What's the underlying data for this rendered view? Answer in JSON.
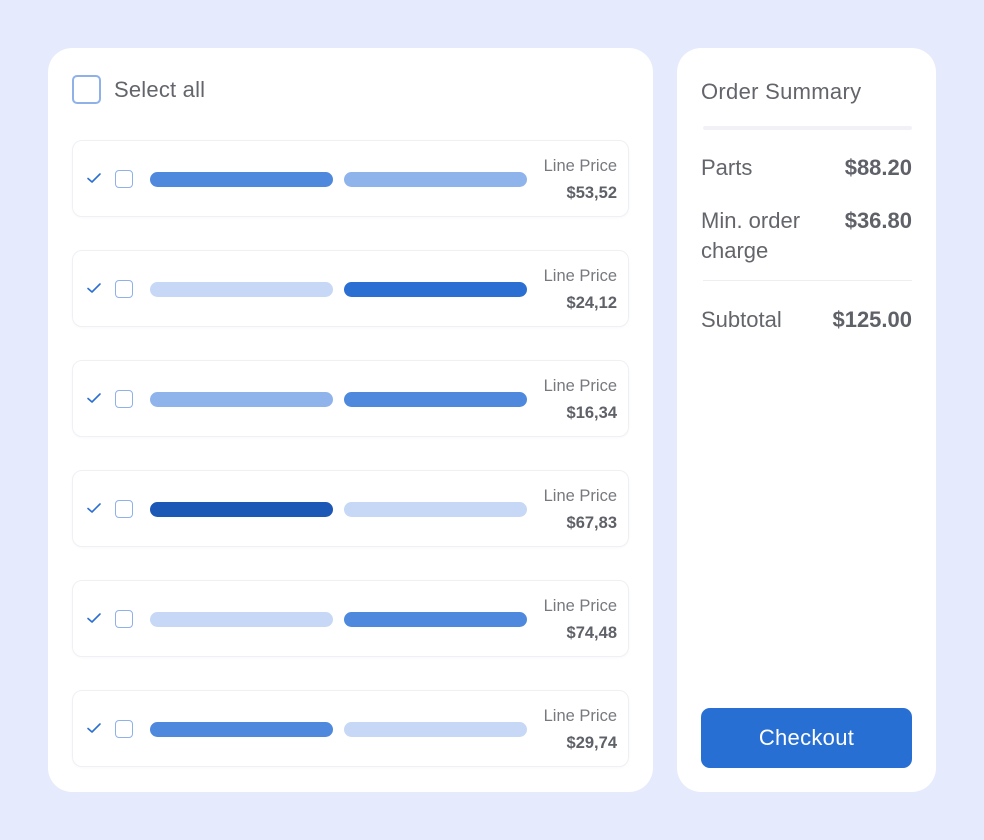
{
  "cart": {
    "select_all_label": "Select all",
    "items": [
      {
        "line_price_label": "Line Price",
        "line_price": "$53,52",
        "bar1_color": "#4e89de",
        "bar2_color": "#8fb4ec"
      },
      {
        "line_price_label": "Line Price",
        "line_price": "$24,12",
        "bar1_color": "#c6d8f6",
        "bar2_color": "#2c6fd2"
      },
      {
        "line_price_label": "Line Price",
        "line_price": "$16,34",
        "bar1_color": "#8fb4ec",
        "bar2_color": "#4e89de"
      },
      {
        "line_price_label": "Line Price",
        "line_price": "$67,83",
        "bar1_color": "#1c58b6",
        "bar2_color": "#c6d8f6"
      },
      {
        "line_price_label": "Line Price",
        "line_price": "$74,48",
        "bar1_color": "#c6d8f6",
        "bar2_color": "#4e89de"
      },
      {
        "line_price_label": "Line Price",
        "line_price": "$29,74",
        "bar1_color": "#4e89de",
        "bar2_color": "#c6d8f6"
      }
    ]
  },
  "summary": {
    "title": "Order Summary",
    "parts_label": "Parts",
    "parts_value": "$88.20",
    "min_order_label": "Min. order charge",
    "min_order_value": "$36.80",
    "subtotal_label": "Subtotal",
    "subtotal_value": "$125.00",
    "checkout_label": "Checkout"
  },
  "colors": {
    "background": "#e5eafc",
    "accent": "#286fd3",
    "checkbox_border": "#8fb1e8",
    "check_mark": "#2c6fd2"
  }
}
